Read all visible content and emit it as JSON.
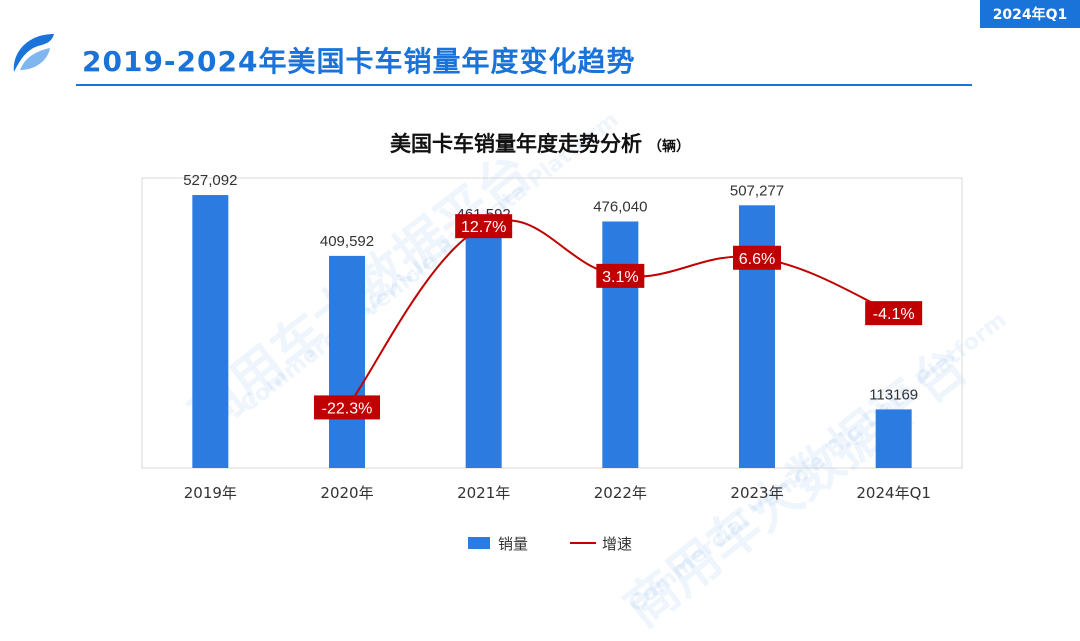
{
  "header": {
    "period_badge": "2024年Q1",
    "title": "2019-2024年美国卡车销量年度变化趋势"
  },
  "watermark": {
    "brand": "商用车大数据平台",
    "english": "Commercial Vehicle Big Data Platform"
  },
  "colors": {
    "accent": "#1a73d9",
    "bar": "#2b7be0",
    "line": "#c00000",
    "label_bg": "#c00000"
  },
  "chart_data": {
    "type": "bar",
    "title": "美国卡车销量年度走势分析",
    "unit": "（辆）",
    "categories": [
      "2019年",
      "2020年",
      "2021年",
      "2022年",
      "2023年",
      "2024年Q1"
    ],
    "series": [
      {
        "name": "销量",
        "type": "bar",
        "values": [
          527092,
          409592,
          461592,
          476040,
          507277,
          113169
        ],
        "labels": [
          "527,092",
          "409,592",
          "461,592",
          "476,040",
          "507,277",
          "113169"
        ]
      },
      {
        "name": "增速",
        "type": "line",
        "axis": "secondary",
        "values": [
          null,
          -22.3,
          12.7,
          3.1,
          6.6,
          -4.1
        ],
        "labels": [
          "",
          "-22.3%",
          "12.7%",
          "3.1%",
          "6.6%",
          "-4.1%"
        ]
      }
    ],
    "ylim": [
      0,
      560000
    ],
    "growth_ylim": [
      -34,
      22
    ],
    "legend": "bottom",
    "grid": false
  }
}
